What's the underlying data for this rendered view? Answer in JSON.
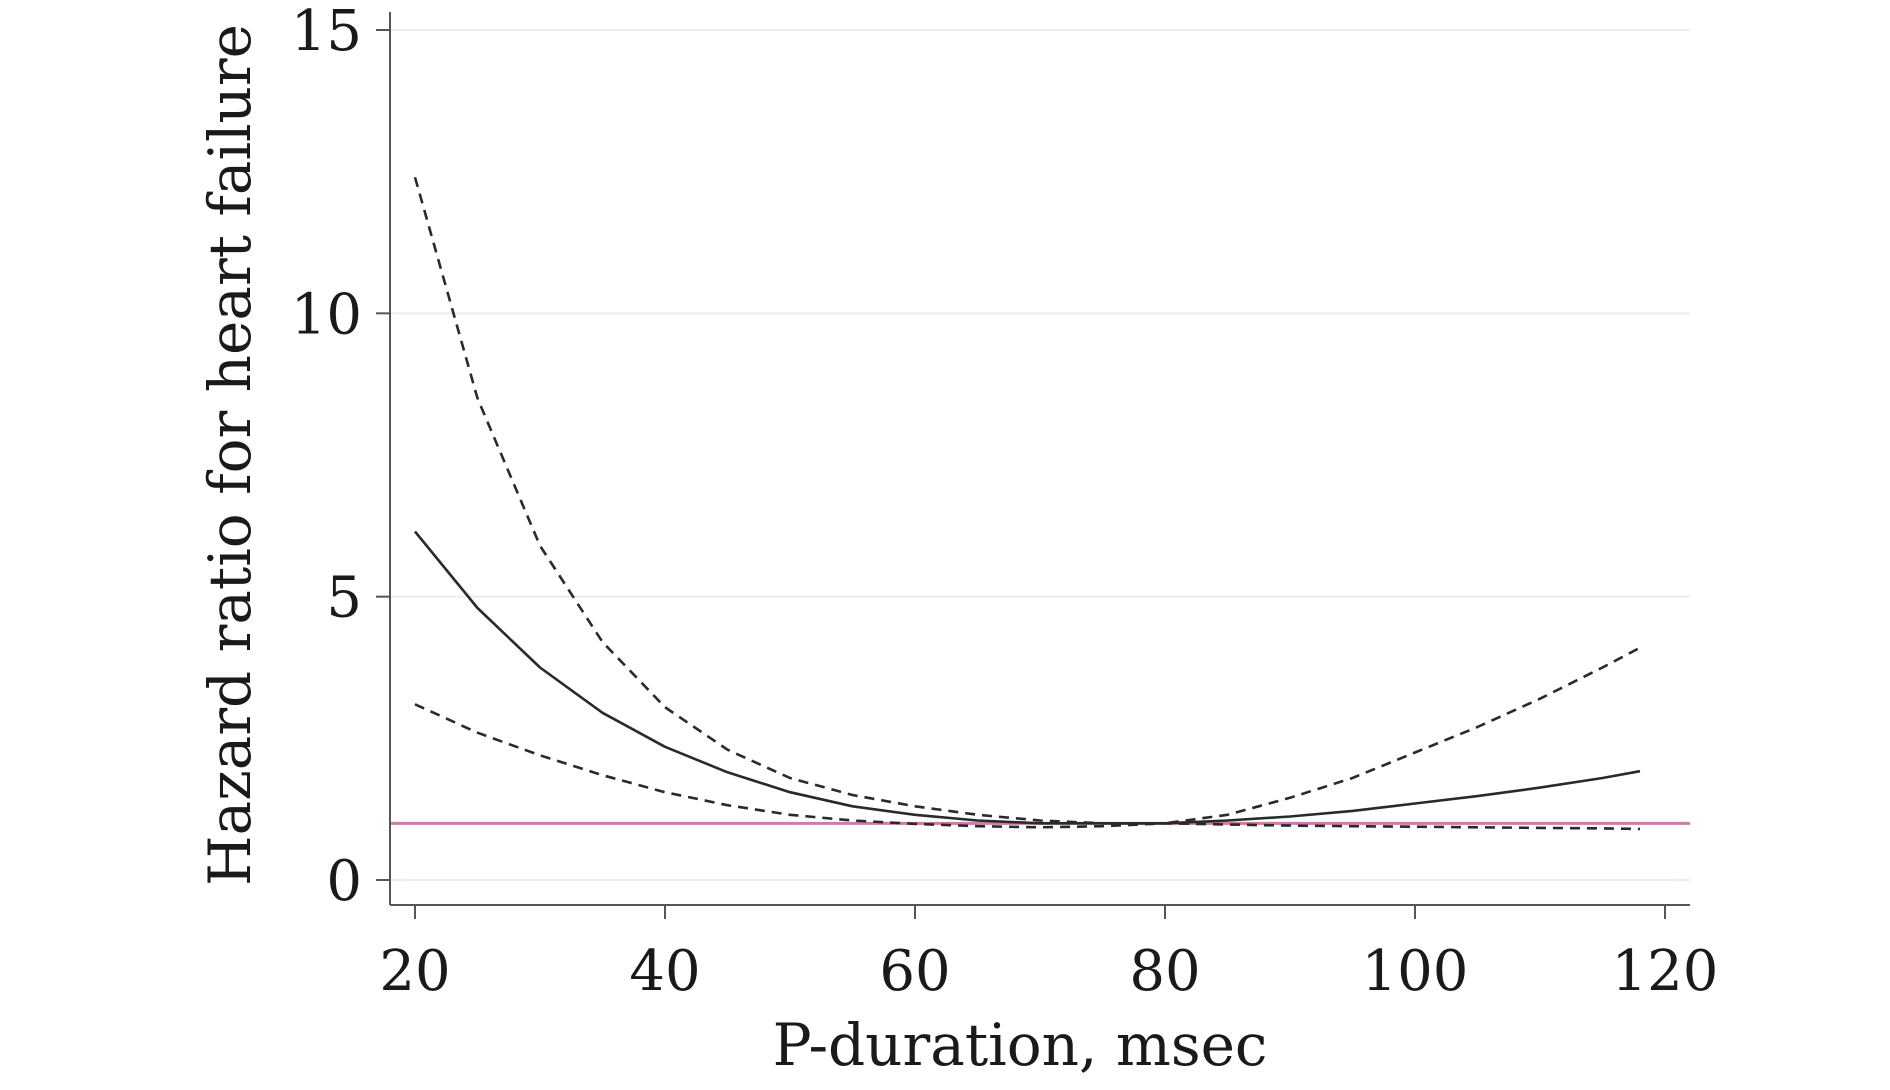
{
  "chart_data": {
    "type": "line",
    "title": "",
    "xlabel": "P-duration, msec",
    "ylabel": "Hazard ratio for heart failure",
    "xlim": [
      18,
      122
    ],
    "ylim": [
      0,
      15
    ],
    "x_ticks": [
      20,
      40,
      60,
      80,
      100,
      120
    ],
    "y_ticks": [
      0,
      5,
      10,
      15
    ],
    "grid": true,
    "legend": "none",
    "x": [
      20,
      25,
      30,
      35,
      40,
      45,
      50,
      55,
      60,
      65,
      70,
      75,
      80,
      85,
      90,
      95,
      100,
      105,
      110,
      115,
      118
    ],
    "series": [
      {
        "style": "solid",
        "color": "#2a2a2a",
        "values": [
          6.15,
          4.8,
          3.75,
          2.95,
          2.35,
          1.9,
          1.55,
          1.3,
          1.15,
          1.05,
          1.0,
          1.0,
          1.0,
          1.05,
          1.12,
          1.22,
          1.35,
          1.48,
          1.63,
          1.8,
          1.92
        ]
      },
      {
        "style": "dashed",
        "color": "#2a2a2a",
        "values": [
          12.4,
          8.5,
          5.9,
          4.2,
          3.05,
          2.3,
          1.8,
          1.5,
          1.3,
          1.15,
          1.05,
          1.0,
          1.0,
          1.15,
          1.45,
          1.8,
          2.25,
          2.7,
          3.2,
          3.75,
          4.1
        ]
      },
      {
        "style": "dashed",
        "color": "#2a2a2a",
        "values": [
          3.1,
          2.6,
          2.2,
          1.85,
          1.55,
          1.32,
          1.15,
          1.05,
          0.99,
          0.95,
          0.93,
          0.95,
          1.0,
          0.98,
          0.96,
          0.95,
          0.94,
          0.93,
          0.92,
          0.91,
          0.9
        ]
      }
    ],
    "reference_line": {
      "y": 1,
      "color": "#d07aa8"
    },
    "gridline_color": "#e6eef3",
    "axis_color": "#555555"
  }
}
